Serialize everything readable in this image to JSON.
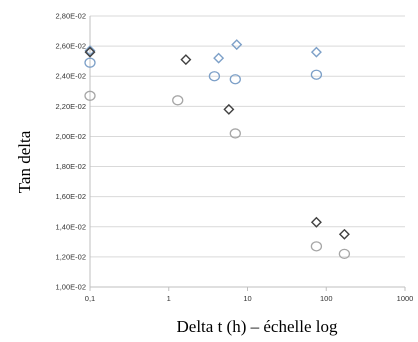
{
  "chart_data": {
    "type": "scatter",
    "title": "",
    "xlabel": "Delta t (h) – échelle log",
    "ylabel": "Tan delta",
    "x_scale": "log",
    "xlim": [
      0.1,
      1000
    ],
    "ylim": [
      0.01,
      0.028
    ],
    "grid": true,
    "legend": "none",
    "x_ticks": [
      0.1,
      1,
      10,
      100,
      1000
    ],
    "x_tick_labels": [
      "0,1",
      "1",
      "10",
      "100",
      "1000"
    ],
    "y_ticks": [
      0.01,
      0.012,
      0.014,
      0.016,
      0.018,
      0.02,
      0.022,
      0.024,
      0.026,
      0.028
    ],
    "y_tick_labels": [
      "1,00E-02",
      "1,20E-02",
      "1,40E-02",
      "1,60E-02",
      "1,80E-02",
      "2,00E-02",
      "2,20E-02",
      "2,40E-02",
      "2,60E-02",
      "2,80E-02"
    ],
    "series": [
      {
        "marker": "diamond",
        "color": "#7da0c8",
        "points": [
          [
            0.1,
            0.0257
          ],
          [
            4.3,
            0.0252
          ],
          [
            7.3,
            0.0261
          ],
          [
            75,
            0.0256
          ]
        ]
      },
      {
        "marker": "circle",
        "color": "#7da0c8",
        "points": [
          [
            0.1,
            0.0249
          ],
          [
            3.8,
            0.024
          ],
          [
            7,
            0.0238
          ],
          [
            75,
            0.0241
          ]
        ]
      },
      {
        "marker": "diamond",
        "color": "#404040",
        "points": [
          [
            0.1,
            0.0256
          ],
          [
            1.65,
            0.0251
          ],
          [
            5.8,
            0.0218
          ],
          [
            75,
            0.0143
          ],
          [
            170,
            0.0135
          ]
        ]
      },
      {
        "marker": "circle",
        "color": "#a6a6a6",
        "points": [
          [
            0.1,
            0.0227
          ],
          [
            1.3,
            0.0224
          ],
          [
            7,
            0.0202
          ],
          [
            75,
            0.0127
          ],
          [
            170,
            0.0122
          ]
        ]
      }
    ]
  }
}
